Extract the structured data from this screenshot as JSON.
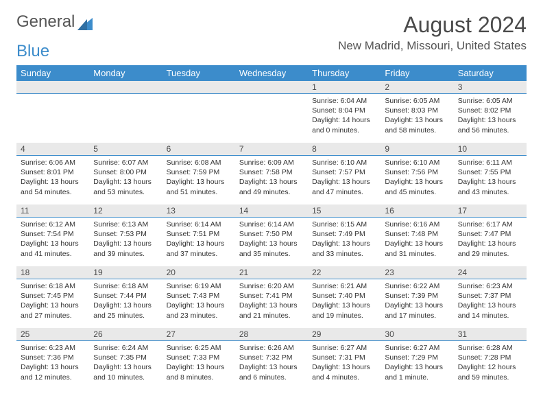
{
  "logo": {
    "part1": "General",
    "part2": "Blue"
  },
  "title": "August 2024",
  "location": "New Madrid, Missouri, United States",
  "colors": {
    "header_bg": "#3c8ccb",
    "header_text": "#ffffff",
    "daynum_bg": "#e9e9e9",
    "divider": "#3c8ccb",
    "body_text": "#333333",
    "title_text": "#4a4a4a"
  },
  "weekdays": [
    "Sunday",
    "Monday",
    "Tuesday",
    "Wednesday",
    "Thursday",
    "Friday",
    "Saturday"
  ],
  "weeks": [
    [
      {
        "day": "",
        "sunrise": "",
        "sunset": "",
        "daylight": ""
      },
      {
        "day": "",
        "sunrise": "",
        "sunset": "",
        "daylight": ""
      },
      {
        "day": "",
        "sunrise": "",
        "sunset": "",
        "daylight": ""
      },
      {
        "day": "",
        "sunrise": "",
        "sunset": "",
        "daylight": ""
      },
      {
        "day": "1",
        "sunrise": "Sunrise: 6:04 AM",
        "sunset": "Sunset: 8:04 PM",
        "daylight": "Daylight: 14 hours and 0 minutes."
      },
      {
        "day": "2",
        "sunrise": "Sunrise: 6:05 AM",
        "sunset": "Sunset: 8:03 PM",
        "daylight": "Daylight: 13 hours and 58 minutes."
      },
      {
        "day": "3",
        "sunrise": "Sunrise: 6:05 AM",
        "sunset": "Sunset: 8:02 PM",
        "daylight": "Daylight: 13 hours and 56 minutes."
      }
    ],
    [
      {
        "day": "4",
        "sunrise": "Sunrise: 6:06 AM",
        "sunset": "Sunset: 8:01 PM",
        "daylight": "Daylight: 13 hours and 54 minutes."
      },
      {
        "day": "5",
        "sunrise": "Sunrise: 6:07 AM",
        "sunset": "Sunset: 8:00 PM",
        "daylight": "Daylight: 13 hours and 53 minutes."
      },
      {
        "day": "6",
        "sunrise": "Sunrise: 6:08 AM",
        "sunset": "Sunset: 7:59 PM",
        "daylight": "Daylight: 13 hours and 51 minutes."
      },
      {
        "day": "7",
        "sunrise": "Sunrise: 6:09 AM",
        "sunset": "Sunset: 7:58 PM",
        "daylight": "Daylight: 13 hours and 49 minutes."
      },
      {
        "day": "8",
        "sunrise": "Sunrise: 6:10 AM",
        "sunset": "Sunset: 7:57 PM",
        "daylight": "Daylight: 13 hours and 47 minutes."
      },
      {
        "day": "9",
        "sunrise": "Sunrise: 6:10 AM",
        "sunset": "Sunset: 7:56 PM",
        "daylight": "Daylight: 13 hours and 45 minutes."
      },
      {
        "day": "10",
        "sunrise": "Sunrise: 6:11 AM",
        "sunset": "Sunset: 7:55 PM",
        "daylight": "Daylight: 13 hours and 43 minutes."
      }
    ],
    [
      {
        "day": "11",
        "sunrise": "Sunrise: 6:12 AM",
        "sunset": "Sunset: 7:54 PM",
        "daylight": "Daylight: 13 hours and 41 minutes."
      },
      {
        "day": "12",
        "sunrise": "Sunrise: 6:13 AM",
        "sunset": "Sunset: 7:53 PM",
        "daylight": "Daylight: 13 hours and 39 minutes."
      },
      {
        "day": "13",
        "sunrise": "Sunrise: 6:14 AM",
        "sunset": "Sunset: 7:51 PM",
        "daylight": "Daylight: 13 hours and 37 minutes."
      },
      {
        "day": "14",
        "sunrise": "Sunrise: 6:14 AM",
        "sunset": "Sunset: 7:50 PM",
        "daylight": "Daylight: 13 hours and 35 minutes."
      },
      {
        "day": "15",
        "sunrise": "Sunrise: 6:15 AM",
        "sunset": "Sunset: 7:49 PM",
        "daylight": "Daylight: 13 hours and 33 minutes."
      },
      {
        "day": "16",
        "sunrise": "Sunrise: 6:16 AM",
        "sunset": "Sunset: 7:48 PM",
        "daylight": "Daylight: 13 hours and 31 minutes."
      },
      {
        "day": "17",
        "sunrise": "Sunrise: 6:17 AM",
        "sunset": "Sunset: 7:47 PM",
        "daylight": "Daylight: 13 hours and 29 minutes."
      }
    ],
    [
      {
        "day": "18",
        "sunrise": "Sunrise: 6:18 AM",
        "sunset": "Sunset: 7:45 PM",
        "daylight": "Daylight: 13 hours and 27 minutes."
      },
      {
        "day": "19",
        "sunrise": "Sunrise: 6:18 AM",
        "sunset": "Sunset: 7:44 PM",
        "daylight": "Daylight: 13 hours and 25 minutes."
      },
      {
        "day": "20",
        "sunrise": "Sunrise: 6:19 AM",
        "sunset": "Sunset: 7:43 PM",
        "daylight": "Daylight: 13 hours and 23 minutes."
      },
      {
        "day": "21",
        "sunrise": "Sunrise: 6:20 AM",
        "sunset": "Sunset: 7:41 PM",
        "daylight": "Daylight: 13 hours and 21 minutes."
      },
      {
        "day": "22",
        "sunrise": "Sunrise: 6:21 AM",
        "sunset": "Sunset: 7:40 PM",
        "daylight": "Daylight: 13 hours and 19 minutes."
      },
      {
        "day": "23",
        "sunrise": "Sunrise: 6:22 AM",
        "sunset": "Sunset: 7:39 PM",
        "daylight": "Daylight: 13 hours and 17 minutes."
      },
      {
        "day": "24",
        "sunrise": "Sunrise: 6:23 AM",
        "sunset": "Sunset: 7:37 PM",
        "daylight": "Daylight: 13 hours and 14 minutes."
      }
    ],
    [
      {
        "day": "25",
        "sunrise": "Sunrise: 6:23 AM",
        "sunset": "Sunset: 7:36 PM",
        "daylight": "Daylight: 13 hours and 12 minutes."
      },
      {
        "day": "26",
        "sunrise": "Sunrise: 6:24 AM",
        "sunset": "Sunset: 7:35 PM",
        "daylight": "Daylight: 13 hours and 10 minutes."
      },
      {
        "day": "27",
        "sunrise": "Sunrise: 6:25 AM",
        "sunset": "Sunset: 7:33 PM",
        "daylight": "Daylight: 13 hours and 8 minutes."
      },
      {
        "day": "28",
        "sunrise": "Sunrise: 6:26 AM",
        "sunset": "Sunset: 7:32 PM",
        "daylight": "Daylight: 13 hours and 6 minutes."
      },
      {
        "day": "29",
        "sunrise": "Sunrise: 6:27 AM",
        "sunset": "Sunset: 7:31 PM",
        "daylight": "Daylight: 13 hours and 4 minutes."
      },
      {
        "day": "30",
        "sunrise": "Sunrise: 6:27 AM",
        "sunset": "Sunset: 7:29 PM",
        "daylight": "Daylight: 13 hours and 1 minute."
      },
      {
        "day": "31",
        "sunrise": "Sunrise: 6:28 AM",
        "sunset": "Sunset: 7:28 PM",
        "daylight": "Daylight: 12 hours and 59 minutes."
      }
    ]
  ]
}
